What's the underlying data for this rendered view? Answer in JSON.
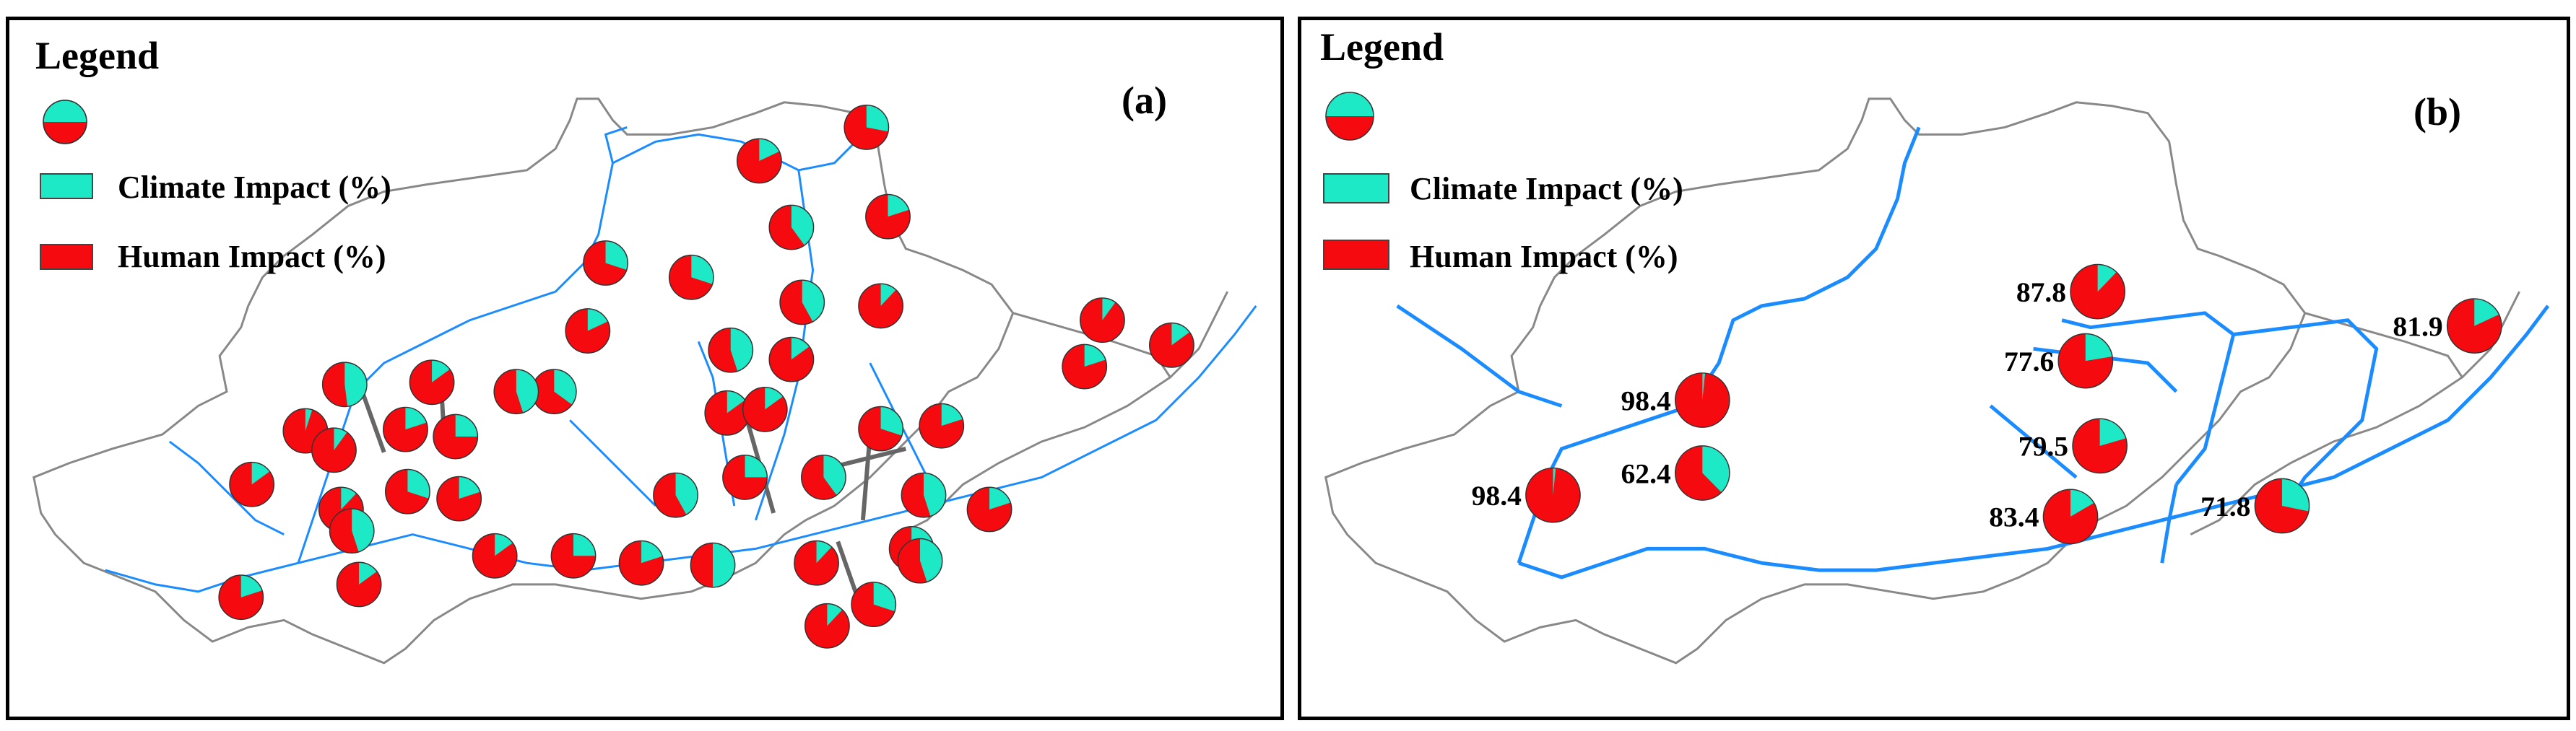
{
  "colors": {
    "climate": "#1DE9C6",
    "human": "#F50A10",
    "river": "#1A8CFF",
    "border": "#888888",
    "stem": "#666666"
  },
  "legend": {
    "title": "Legend",
    "climate_label": "Climate Impact (%)",
    "human_label": "Human Impact (%)"
  },
  "panels": [
    {
      "tag": "(a)",
      "pies": [
        {
          "climate": 28
        },
        {
          "climate": 18
        },
        {
          "climate": 42
        },
        {
          "climate": 12
        },
        {
          "climate": 30
        },
        {
          "climate": 18
        },
        {
          "climate": 45
        },
        {
          "climate": 15
        },
        {
          "climate": 35
        },
        {
          "climate": 45
        },
        {
          "climate": 15
        },
        {
          "climate": 48
        },
        {
          "climate": 10
        },
        {
          "climate": 20
        },
        {
          "climate": 15
        },
        {
          "climate": 20
        },
        {
          "climate": 30
        },
        {
          "climate": 40
        },
        {
          "climate": 25
        },
        {
          "climate": 15
        },
        {
          "climate": 42
        },
        {
          "climate": 45
        },
        {
          "climate": 20
        },
        {
          "climate": 30
        },
        {
          "climate": 12
        },
        {
          "climate": 45
        },
        {
          "climate": 30
        },
        {
          "climate": 50
        },
        {
          "climate": 20
        },
        {
          "climate": 25
        },
        {
          "climate": 15
        },
        {
          "climate": 20
        },
        {
          "climate": 30
        },
        {
          "climate": 12
        },
        {
          "climate": 15
        },
        {
          "climate": 5
        },
        {
          "climate": 25
        },
        {
          "climate": 20
        },
        {
          "climate": 10
        },
        {
          "climate": 45
        },
        {
          "climate": 15
        },
        {
          "climate": 20
        },
        {
          "climate": 12
        },
        {
          "climate": 30
        },
        {
          "climate": 15
        },
        {
          "climate": 40
        },
        {
          "climate": 20
        }
      ]
    },
    {
      "tag": "(b)",
      "pies": [
        {
          "human": 98.4,
          "label": "98.4"
        },
        {
          "human": 98.4,
          "label": "98.4"
        },
        {
          "human": 62.4,
          "label": "62.4"
        },
        {
          "human": 87.8,
          "label": "87.8"
        },
        {
          "human": 77.6,
          "label": "77.6"
        },
        {
          "human": 79.5,
          "label": "79.5"
        },
        {
          "human": 83.4,
          "label": "83.4"
        },
        {
          "human": 71.8,
          "label": "71.8"
        },
        {
          "human": 81.9,
          "label": "81.9"
        }
      ]
    }
  ]
}
